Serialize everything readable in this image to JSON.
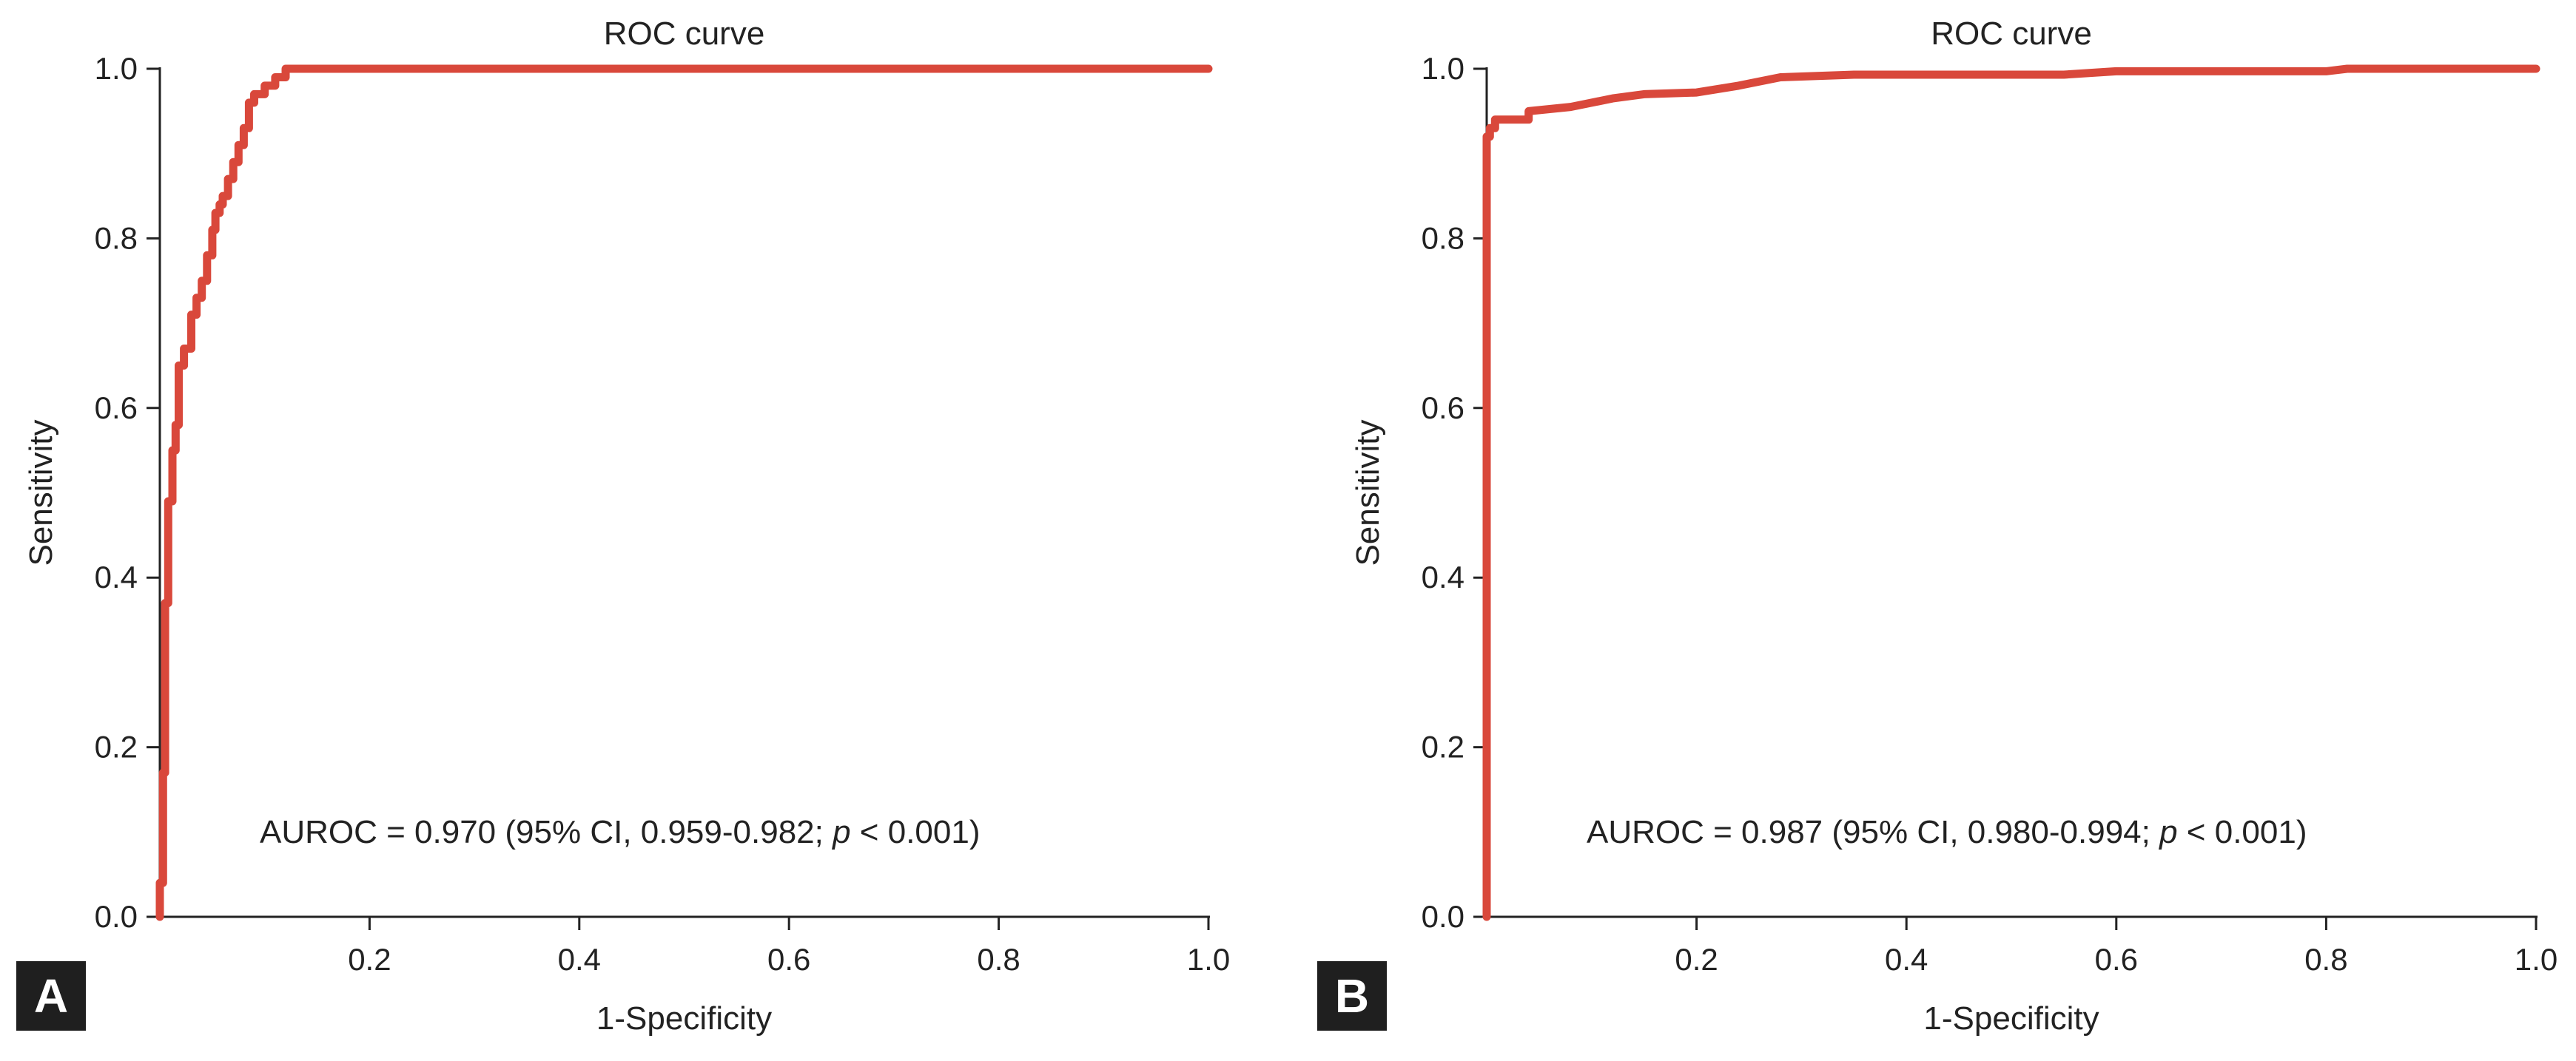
{
  "curve_color": "#d9483b",
  "chart_data": [
    {
      "panel_label": "A",
      "type": "line",
      "title": "ROC curve",
      "xlabel": "1-Specificity",
      "ylabel": "Sensitivity",
      "xlim": [
        0,
        1
      ],
      "ylim": [
        0,
        1
      ],
      "xticks": [
        0.2,
        0.4,
        0.6,
        0.8,
        1.0
      ],
      "xtick_labels": [
        "0.2",
        "0.4",
        "0.6",
        "0.8",
        "1.0"
      ],
      "yticks": [
        0.0,
        0.2,
        0.4,
        0.6,
        0.8,
        1.0
      ],
      "ytick_labels": [
        "0.0",
        "0.2",
        "0.4",
        "0.6",
        "0.8",
        "1.0"
      ],
      "annotation": {
        "prefix": "AUROC = 0.970 (95% CI, 0.959-0.982; ",
        "p": "p",
        "suffix": " < 0.001)"
      },
      "series": [
        {
          "x": [
            0.0,
            0.0,
            0.003,
            0.003,
            0.005,
            0.005,
            0.008,
            0.008,
            0.012,
            0.012,
            0.015,
            0.015,
            0.018,
            0.018,
            0.023,
            0.023,
            0.03,
            0.03,
            0.035,
            0.035,
            0.04,
            0.04,
            0.045,
            0.045,
            0.05,
            0.05,
            0.053,
            0.053,
            0.057,
            0.057,
            0.06,
            0.06,
            0.065,
            0.065,
            0.07,
            0.07,
            0.075,
            0.075,
            0.08,
            0.08,
            0.085,
            0.085,
            0.09,
            0.09,
            0.1,
            0.1,
            0.11,
            0.11,
            0.12,
            0.12,
            0.125,
            0.125,
            0.15,
            1.0
          ],
          "y": [
            0.0,
            0.04,
            0.04,
            0.17,
            0.17,
            0.37,
            0.37,
            0.49,
            0.49,
            0.55,
            0.55,
            0.58,
            0.58,
            0.65,
            0.65,
            0.67,
            0.67,
            0.71,
            0.71,
            0.73,
            0.73,
            0.75,
            0.75,
            0.78,
            0.78,
            0.81,
            0.81,
            0.83,
            0.83,
            0.84,
            0.84,
            0.85,
            0.85,
            0.87,
            0.87,
            0.89,
            0.89,
            0.91,
            0.91,
            0.93,
            0.93,
            0.96,
            0.96,
            0.97,
            0.97,
            0.98,
            0.98,
            0.99,
            0.99,
            1.0,
            1.0,
            1.0,
            1.0,
            1.0
          ]
        }
      ]
    },
    {
      "panel_label": "B",
      "type": "line",
      "title": "ROC curve",
      "xlabel": "1-Specificity",
      "ylabel": "Sensitivity",
      "xlim": [
        0,
        1
      ],
      "ylim": [
        0,
        1
      ],
      "xticks": [
        0.2,
        0.4,
        0.6,
        0.8,
        1.0
      ],
      "xtick_labels": [
        "0.2",
        "0.4",
        "0.6",
        "0.8",
        "1.0"
      ],
      "yticks": [
        0.0,
        0.2,
        0.4,
        0.6,
        0.8,
        1.0
      ],
      "ytick_labels": [
        "0.0",
        "0.2",
        "0.4",
        "0.6",
        "0.8",
        "1.0"
      ],
      "annotation": {
        "prefix": "AUROC = 0.987 (95% CI, 0.980-0.994; ",
        "p": "p",
        "suffix": " < 0.001)"
      },
      "series": [
        {
          "x": [
            0.0,
            0.0,
            0.003,
            0.003,
            0.008,
            0.008,
            0.015,
            0.015,
            0.04,
            0.04,
            0.08,
            0.1,
            0.12,
            0.15,
            0.2,
            0.24,
            0.28,
            0.35,
            0.55,
            0.6,
            0.8,
            0.82,
            1.0
          ],
          "y": [
            0.0,
            0.92,
            0.92,
            0.93,
            0.93,
            0.94,
            0.94,
            0.94,
            0.94,
            0.95,
            0.955,
            0.96,
            0.965,
            0.97,
            0.972,
            0.98,
            0.99,
            0.993,
            0.993,
            0.997,
            0.997,
            1.0,
            1.0
          ]
        }
      ]
    }
  ]
}
